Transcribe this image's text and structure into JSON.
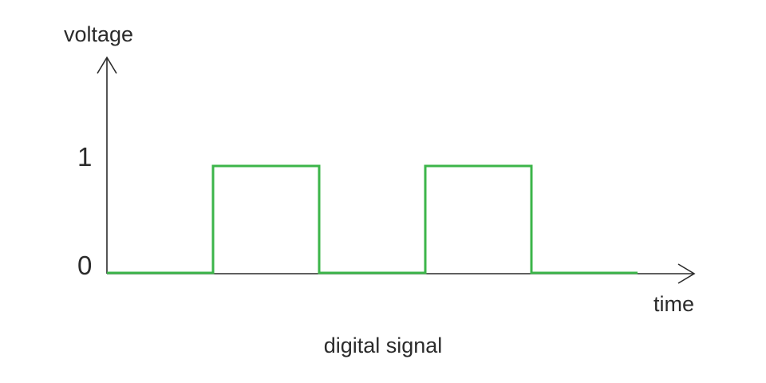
{
  "figure": {
    "caption": "digital signal",
    "y_axis_label": "voltage",
    "x_axis_label": "time",
    "y_ticks": [
      "0",
      "1"
    ]
  },
  "signal": {
    "color": "#3cb54a",
    "levels": [
      0,
      1,
      0,
      1,
      0
    ],
    "axis_color": "#2b2b2b"
  }
}
